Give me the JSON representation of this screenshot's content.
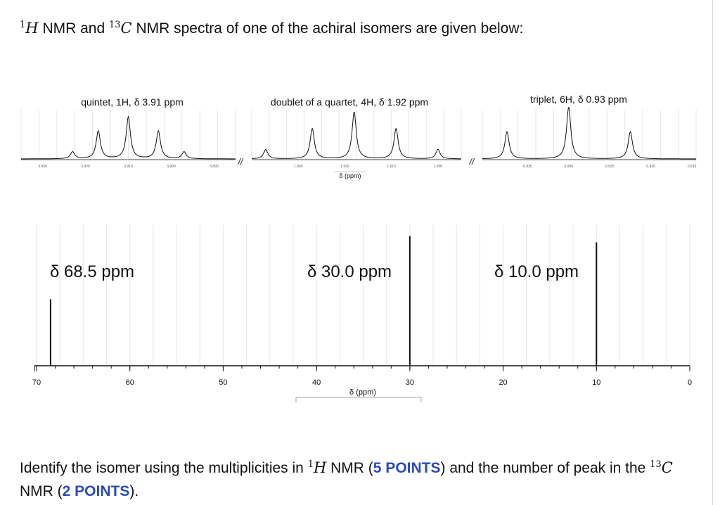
{
  "header": {
    "h_sup": "1",
    "h_sym": "H",
    "nmr_and": " NMR and ",
    "c_sup": "13",
    "c_sym": "C",
    "rest": " NMR spectra of one of the achiral isomers are given below:"
  },
  "question": {
    "part1": "Identify the isomer using the multiplicities in ",
    "h_sup": "1",
    "h_sym": "H",
    "part2": " NMR (",
    "points_a": "5 POINTS",
    "part3": ") and the number of peak in the ",
    "c_sup": "13",
    "c_sym": "C",
    "part4": " NMR (",
    "points_b": "2 POINTS",
    "part5": ")."
  },
  "colors": {
    "points": "#2a4bb8",
    "spectrum": "#111111",
    "grid": "#e6e6e6"
  },
  "chart_data": [
    {
      "type": "line",
      "name": "1H NMR",
      "xlabel": "δ (ppm)",
      "axis_break_symbol": "//",
      "panels": [
        {
          "label": "quintet, 1H, δ 3.91 ppm",
          "xlim": [
            3.935,
            3.885
          ],
          "ticks": [
            "3.930",
            "3.920",
            "3.910",
            "3.900",
            "3.890"
          ],
          "tick_values": [
            3.93,
            3.92,
            3.91,
            3.9,
            3.89
          ],
          "peaks_ppm": [
            3.923,
            3.917,
            3.91,
            3.903,
            3.897
          ],
          "heights": [
            0.11,
            0.44,
            0.66,
            0.44,
            0.11
          ]
        },
        {
          "label": "doublet of a quartet, 4H, δ 1.92 ppm",
          "xlim": [
            1.94,
            1.895
          ],
          "ticks": [
            "1.930",
            "1.920",
            "1.910",
            "1.900"
          ],
          "tick_values": [
            1.93,
            1.92,
            1.91,
            1.9
          ],
          "peaks_ppm": [
            1.937,
            1.927,
            1.918,
            1.909,
            1.9
          ],
          "heights": [
            0.15,
            0.48,
            0.74,
            0.48,
            0.15
          ]
        },
        {
          "label": "triplet, 6H, δ 0.93 ppm",
          "xlim": [
            0.9405,
            0.9145
          ],
          "ticks": [
            "0.935",
            "0.930",
            "0.925",
            "0.920",
            "0.915"
          ],
          "tick_values": [
            0.935,
            0.93,
            0.925,
            0.92,
            0.915
          ],
          "peaks_ppm": [
            0.9375,
            0.93,
            0.9225
          ],
          "heights": [
            0.43,
            0.82,
            0.43
          ]
        }
      ]
    },
    {
      "type": "bar",
      "name": "13C NMR",
      "xlabel": "δ (ppm)",
      "xlim": [
        70,
        0
      ],
      "major_ticks": [
        70,
        60,
        50,
        40,
        30,
        20,
        10,
        0
      ],
      "peaks": [
        {
          "x": 68.5,
          "label": "δ 68.5 ppm",
          "height": 0.42
        },
        {
          "x": 30.0,
          "label": "δ 30.0 ppm",
          "height": 0.82
        },
        {
          "x": 10.0,
          "label": "δ 10.0 ppm",
          "height": 0.78
        }
      ]
    }
  ]
}
